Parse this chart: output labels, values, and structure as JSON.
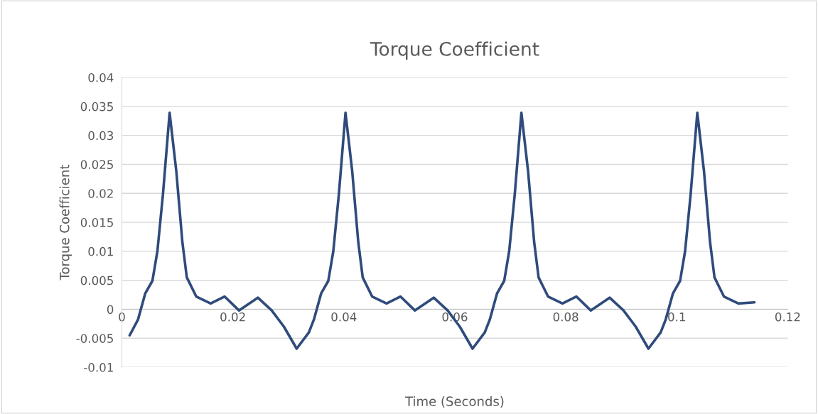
{
  "chart_data": {
    "type": "line",
    "title": "Torque Coefficient",
    "xlabel": "Time (Seconds)",
    "ylabel": "Torque Coefficient",
    "xlim": [
      0,
      0.12
    ],
    "xticks": [
      0,
      0.02,
      0.04,
      0.06,
      0.08,
      0.1,
      0.12
    ],
    "ylim": [
      -0.01,
      0.04
    ],
    "yticks": [
      -0.01,
      -0.005,
      0,
      0.005,
      0.01,
      0.015,
      0.02,
      0.025,
      0.03,
      0.035,
      0.04
    ],
    "grid": "y",
    "marker": "none",
    "line_style": "solid",
    "series": [
      {
        "color": "#2f4b7c",
        "x": [
          0.0014,
          0.0029,
          0.0042,
          0.0055,
          0.0064,
          0.0074,
          0.0086,
          0.0098,
          0.0109,
          0.0117,
          0.0134,
          0.016,
          0.0185,
          0.0211,
          0.0245,
          0.027,
          0.0292,
          0.0315,
          0.0337,
          0.0346,
          0.0359,
          0.0372,
          0.0381,
          0.0391,
          0.0403,
          0.0415,
          0.0426,
          0.0434,
          0.0451,
          0.0477,
          0.0502,
          0.0528,
          0.0562,
          0.0587,
          0.0609,
          0.0632,
          0.0654,
          0.0663,
          0.0676,
          0.0689,
          0.0698,
          0.0708,
          0.072,
          0.0732,
          0.0743,
          0.0751,
          0.0768,
          0.0794,
          0.0819,
          0.0845,
          0.0879,
          0.0904,
          0.0926,
          0.0949,
          0.0971,
          0.098,
          0.0993,
          0.1006,
          0.1015,
          0.1025,
          0.1037,
          0.1049,
          0.106,
          0.1068,
          0.1085,
          0.1111,
          0.114
        ],
        "values": [
          -0.0045,
          -0.0018,
          0.0027,
          0.0049,
          0.01,
          0.0198,
          0.0339,
          0.0239,
          0.0116,
          0.0055,
          0.0022,
          0.001,
          0.0022,
          -0.0002,
          0.002,
          -0.0002,
          -0.003,
          -0.0068,
          -0.004,
          -0.0018,
          0.0027,
          0.0049,
          0.01,
          0.0198,
          0.0339,
          0.0239,
          0.0116,
          0.0055,
          0.0022,
          0.001,
          0.0022,
          -0.0002,
          0.002,
          -0.0002,
          -0.003,
          -0.0068,
          -0.004,
          -0.0018,
          0.0027,
          0.0049,
          0.01,
          0.0198,
          0.0339,
          0.0239,
          0.0116,
          0.0055,
          0.0022,
          0.001,
          0.0022,
          -0.0002,
          0.002,
          -0.0002,
          -0.003,
          -0.0068,
          -0.004,
          -0.0018,
          0.0027,
          0.0049,
          0.01,
          0.0198,
          0.0339,
          0.0239,
          0.0116,
          0.0055,
          0.0022,
          0.001,
          0.0012
        ]
      }
    ]
  }
}
